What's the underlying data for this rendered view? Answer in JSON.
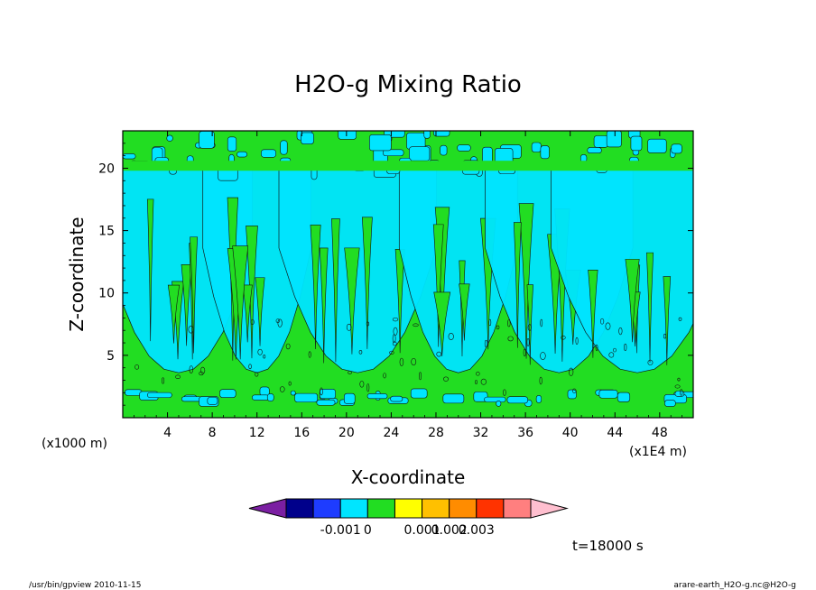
{
  "chart_data": {
    "type": "heatmap",
    "title": "H2O-g Mixing Ratio",
    "xlabel": "X-coordinate",
    "ylabel": "Z-coordinate",
    "x_ticks": [
      "4",
      "8",
      "12",
      "16",
      "20",
      "24",
      "28",
      "32",
      "36",
      "40",
      "44",
      "48"
    ],
    "y_ticks": [
      "5",
      "10",
      "15",
      "20"
    ],
    "xlim": [
      0,
      51
    ],
    "ylim": [
      0,
      23
    ],
    "x_unit_left": "(x1000 m)",
    "x_unit_right": "(x1E4 m)",
    "time_label": "t=18000 s",
    "colorbar": {
      "labels": [
        "-0.001",
        "0",
        "0.001",
        "0.002",
        "0.003"
      ],
      "colors": [
        "#7b1fa2",
        "#00008b",
        "#1e3cff",
        "#00e5ff",
        "#22dd22",
        "#ffff00",
        "#ffc000",
        "#ff8c00",
        "#ff3300",
        "#ff7f7f",
        "#ffbfcf"
      ]
    },
    "field_levels": {
      "cyan": "#00e5ff",
      "green": "#22dd22"
    }
  },
  "footer": {
    "left": "/usr/bin/gpview   2010-11-15",
    "right": "arare-earth_H2O-g.nc@H2O-g"
  }
}
